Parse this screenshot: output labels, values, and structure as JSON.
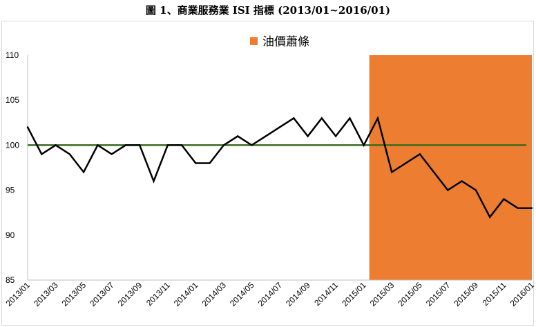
{
  "title": "圖 1、商業服務業 ISI 指標 (2013/01~2016/01)",
  "chart_data": {
    "type": "line",
    "title": "圖 1、商業服務業 ISI 指標 (2013/01~2016/01)",
    "xlabel": "",
    "ylabel": "",
    "ylim": [
      85,
      110
    ],
    "yticks": [
      85,
      90,
      95,
      100,
      105,
      110
    ],
    "grid": false,
    "legend_position": "top-center",
    "x": [
      "2013/01",
      "2013/02",
      "2013/03",
      "2013/04",
      "2013/05",
      "2013/06",
      "2013/07",
      "2013/08",
      "2013/09",
      "2013/10",
      "2013/11",
      "2013/12",
      "2014/01",
      "2014/02",
      "2014/03",
      "2014/04",
      "2014/05",
      "2014/06",
      "2014/07",
      "2014/08",
      "2014/09",
      "2014/10",
      "2014/11",
      "2014/12",
      "2015/01",
      "2015/02",
      "2015/03",
      "2015/04",
      "2015/05",
      "2015/06",
      "2015/07",
      "2015/08",
      "2015/09",
      "2015/10",
      "2015/11",
      "2015/12",
      "2016/01"
    ],
    "xtick_labels": [
      "2013/01",
      "2013/03",
      "2013/05",
      "2013/07",
      "2013/09",
      "2013/11",
      "2014/01",
      "2014/03",
      "2014/05",
      "2014/07",
      "2014/09",
      "2014/11",
      "2015/01",
      "2015/03",
      "2015/05",
      "2015/07",
      "2015/09",
      "2015/11",
      "2016/01"
    ],
    "series": [
      {
        "name": "",
        "color": "#000000",
        "values": [
          102,
          99,
          100,
          99,
          97,
          100,
          99,
          100,
          100,
          96,
          100,
          100,
          98,
          98,
          100,
          101,
          100,
          101,
          102,
          103,
          101,
          103,
          101,
          103,
          100,
          103,
          97,
          98,
          99,
          97,
          95,
          96,
          95,
          92,
          94,
          93,
          93
        ]
      }
    ],
    "reference_line": {
      "value": 100,
      "color": "#3a6b1e"
    },
    "shaded_region": {
      "label": "油價蕭條",
      "start": "2015/01",
      "end": "2016/01",
      "color": "#ed7d31"
    }
  }
}
